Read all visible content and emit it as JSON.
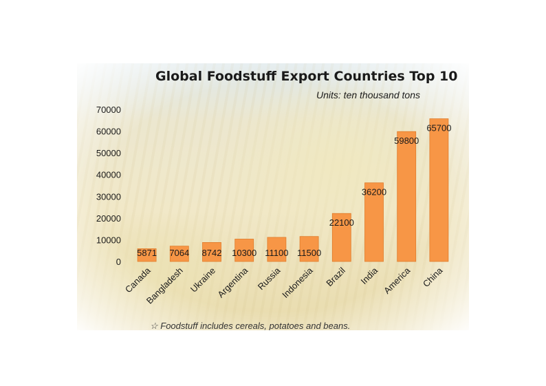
{
  "chart_data": {
    "type": "bar",
    "title": "Global Foodstuff Export Countries Top 10",
    "subtitle": "Units: ten thousand tons",
    "categories": [
      "Canada",
      "Bangladesh",
      "Ukraine",
      "Argentina",
      "Russia",
      "Indonesia",
      "Brazil",
      "India",
      "America",
      "China"
    ],
    "values": [
      5871,
      7064,
      8742,
      10300,
      11100,
      11500,
      22100,
      36200,
      59800,
      65700
    ],
    "value_labels": [
      "5871",
      "7064",
      "8742",
      "10300",
      "11100",
      "11500",
      "22100",
      "36200",
      "59800",
      "65700"
    ],
    "yticks": [
      "0",
      "10000",
      "20000",
      "30000",
      "40000",
      "50000",
      "60000",
      "70000"
    ],
    "ylim": [
      0,
      70000
    ],
    "xlabel": "",
    "ylabel": "",
    "grid": false,
    "legend": "none",
    "bar_color": "#F79646",
    "bar_edge_color": "#E07B2A",
    "footnote": "☆  Foodstuff includes cereals, potatoes and beans."
  }
}
